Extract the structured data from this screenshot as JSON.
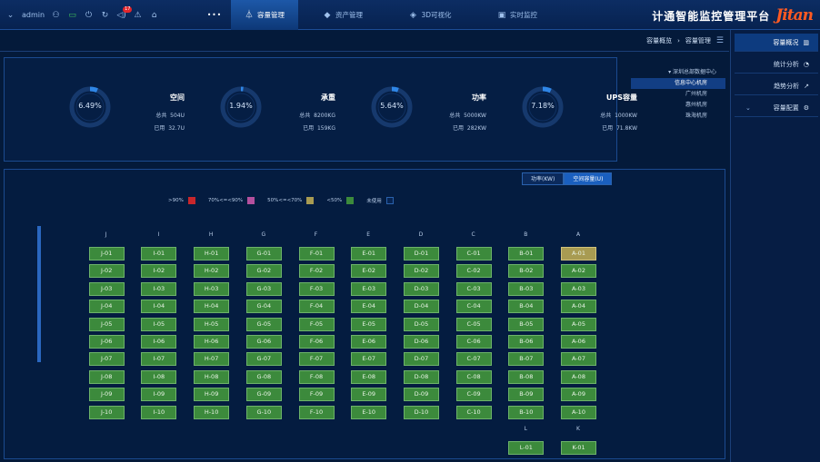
{
  "header": {
    "logo": "Jitan",
    "app_title": "计通智能监控管理平台",
    "nav": [
      {
        "label": "实时监控",
        "icon": "monitor-icon"
      },
      {
        "label": "3D可视化",
        "icon": "cube-icon"
      },
      {
        "label": "资产管理",
        "icon": "layers-icon"
      },
      {
        "label": "容量管理",
        "icon": "flask-icon",
        "active": true
      }
    ],
    "more": "•••",
    "user": "admin",
    "alarm_count": "17"
  },
  "breadcrumb": {
    "parent": "容量管理",
    "sep": "›",
    "current": "容量概览"
  },
  "menu": [
    {
      "label": "容量概况",
      "icon": "bar-chart-icon",
      "active": true
    },
    {
      "label": "统计分析",
      "icon": "pie-icon"
    },
    {
      "label": "趋势分析",
      "icon": "trend-icon"
    },
    {
      "label": "容量配置",
      "icon": "gear-icon",
      "expandable": true
    }
  ],
  "stats": [
    {
      "title": "空间",
      "value": "6.49%",
      "percent": 6.49,
      "total_label": "总共",
      "total": "504U",
      "used_label": "已用",
      "used": "32.7U"
    },
    {
      "title": "承重",
      "value": "1.94%",
      "percent": 1.94,
      "total_label": "总共",
      "total": "8200KG",
      "used_label": "已用",
      "used": "159KG"
    },
    {
      "title": "功率",
      "value": "5.64%",
      "percent": 5.64,
      "total_label": "总共",
      "total": "5000KW",
      "used_label": "已用",
      "used": "282KW"
    },
    {
      "title": "UPS容量",
      "value": "7.18%",
      "percent": 7.18,
      "total_label": "总共",
      "total": "1000KW",
      "used_label": "已用",
      "used": "71.8KW"
    }
  ],
  "tree": [
    {
      "label": "▾ 深圳总部数据中心",
      "level": 0
    },
    {
      "label": "信息中心机房",
      "level": 1,
      "selected": true
    },
    {
      "label": "广州机房",
      "level": 1
    },
    {
      "label": "惠州机房",
      "level": 1
    },
    {
      "label": "珠海机房",
      "level": 1
    }
  ],
  "tabs": [
    {
      "label": "空间容量(U)",
      "active": true
    },
    {
      "label": "功率(KW)"
    }
  ],
  "legend": [
    {
      "label": "未使用",
      "color": "#072452"
    },
    {
      "label": "<50%",
      "color": "#3c8a3c"
    },
    {
      "label": "50%<=<70%",
      "color": "#a89b52"
    },
    {
      "label": "70%<=<90%",
      "color": "#b4509e"
    },
    {
      "label": ">90%",
      "color": "#c8262b"
    }
  ],
  "rack_columns": [
    "A",
    "B",
    "C",
    "D",
    "E",
    "F",
    "G",
    "H",
    "I",
    "J"
  ],
  "rack_rows": [
    "01",
    "02",
    "03",
    "04",
    "05",
    "06",
    "07",
    "08",
    "09",
    "10"
  ],
  "rack_warn": [
    "A-01"
  ],
  "extra_columns": [
    {
      "header": "K",
      "cell": "K-01"
    },
    {
      "header": "L",
      "cell": "L-01"
    }
  ]
}
